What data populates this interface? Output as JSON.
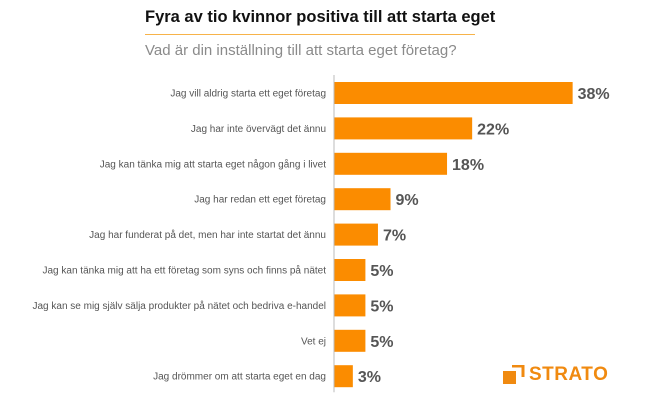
{
  "chart_data": {
    "type": "bar",
    "orientation": "horizontal",
    "title": "Fyra av tio kvinnor positiva till att starta eget",
    "subtitle": "Vad är din inställning till att starta eget företag?",
    "categories": [
      "Jag vill aldrig starta ett eget företag",
      "Jag har inte övervägt det ännu",
      "Jag kan tänka mig att starta eget någon gång i livet",
      "Jag har redan ett eget företag",
      "Jag har funderat på det, men har inte startat det ännu",
      "Jag kan tänka mig att ha ett företag som syns och finns på nätet",
      "Jag kan se mig själv sälja produkter på nätet och bedriva e-handel",
      "Vet ej",
      "Jag drömmer om att starta eget en dag"
    ],
    "values": [
      38,
      22,
      18,
      9,
      7,
      5,
      5,
      5,
      3
    ],
    "value_labels": [
      "38%",
      "22%",
      "18%",
      "9%",
      "7%",
      "5%",
      "5%",
      "5%",
      "3%"
    ],
    "unit": "%",
    "bar_color": "#fb8c00",
    "grid": false
  },
  "brand": {
    "name": "STRATO",
    "color": "#f08a10"
  }
}
